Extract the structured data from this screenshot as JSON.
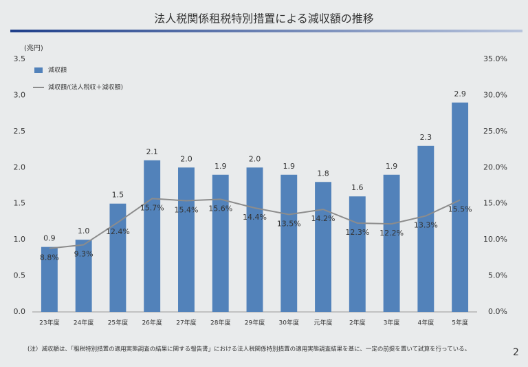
{
  "chart_data": {
    "type": "bar",
    "title": "法人税関係租税特別措置による減収額の推移",
    "y_label": "(兆円)",
    "categories": [
      "23年度",
      "24年度",
      "25年度",
      "26年度",
      "27年度",
      "28年度",
      "29年度",
      "30年度",
      "元年度",
      "2年度",
      "3年度",
      "4年度",
      "5年度"
    ],
    "series": [
      {
        "name": "減収額",
        "color": "#5282ba",
        "values": [
          0.9,
          1.0,
          1.5,
          2.1,
          2.0,
          1.9,
          2.0,
          1.9,
          1.8,
          1.6,
          1.9,
          2.3,
          2.9
        ],
        "value_labels": [
          "0.9",
          "1.0",
          "1.5",
          "2.1",
          "2.0",
          "1.9",
          "2.0",
          "1.9",
          "1.8",
          "1.6",
          "1.9",
          "2.3",
          "2.9"
        ]
      },
      {
        "name": "減収額/(法人税収＋減収額)",
        "color": "#8c8c8c",
        "axis": "y2",
        "values": [
          8.8,
          9.3,
          12.4,
          15.7,
          15.4,
          15.6,
          14.4,
          13.5,
          14.2,
          12.3,
          12.2,
          13.3,
          15.5
        ],
        "value_labels": [
          "8.8%",
          "9.3%",
          "12.4%",
          "15.7%",
          "15.4%",
          "15.6%",
          "14.4%",
          "13.5%",
          "14.2%",
          "12.3%",
          "12.2%",
          "13.3%",
          "15.5%"
        ]
      }
    ],
    "ylim": [
      0,
      3.5
    ],
    "yticks": [
      {
        "value": 0,
        "label": "0.0"
      },
      {
        "value": 0.5,
        "label": "0.5"
      },
      {
        "value": 1,
        "label": "1.0"
      },
      {
        "value": 1.5,
        "label": "1.5"
      },
      {
        "value": 2,
        "label": "2.0"
      },
      {
        "value": 2.5,
        "label": "2.5"
      },
      {
        "value": 3,
        "label": "3.0"
      },
      {
        "value": 3.5,
        "label": "3.5"
      }
    ],
    "y2lim": [
      0,
      35
    ],
    "y2ticks": [
      {
        "value": 0,
        "label": "0.0%"
      },
      {
        "value": 5,
        "label": "5.0%"
      },
      {
        "value": 10,
        "label": "10.0%"
      },
      {
        "value": 15,
        "label": "15.0%"
      },
      {
        "value": 20,
        "label": "20.0%"
      },
      {
        "value": 25,
        "label": "25.0%"
      },
      {
        "value": 30,
        "label": "30.0%"
      },
      {
        "value": 35,
        "label": "35.0%"
      }
    ],
    "grid": false,
    "legend": "top-left",
    "note": "(注）減収額は、「租税特別措置の適用実態調査の結果に関する報告書」における法人税関係特別措置の適用実態調査結果を基に、一定の前提を置いて試算を行っている。",
    "page_number": "2"
  }
}
